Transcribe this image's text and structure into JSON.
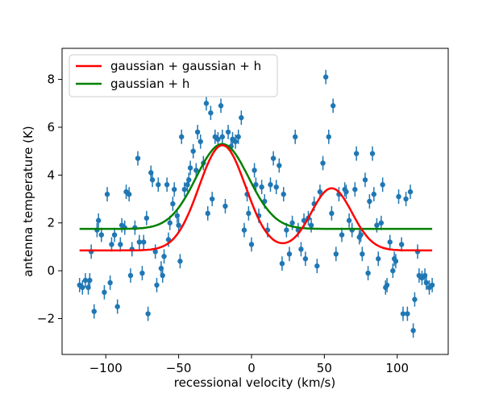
{
  "chart_data": {
    "type": "scatter",
    "xlabel": "recessional velocity (km/s)",
    "ylabel": "antenna temperature (K)",
    "xlim": [
      -130,
      135
    ],
    "ylim": [
      -3.5,
      9.3
    ],
    "xticks": [
      -100,
      -50,
      0,
      50,
      100
    ],
    "yticks": [
      -2,
      0,
      2,
      4,
      6,
      8
    ],
    "legend_position": "top-left",
    "colors": {
      "points": "#1f77b4",
      "fit_two": "#ff0000",
      "fit_one": "#008000"
    },
    "series": [
      {
        "name": "gaussian + gaussian + h",
        "type": "line",
        "model": {
          "a1": 4.4,
          "mu1": -20,
          "sigma1": 16,
          "a2": 2.6,
          "mu2": 55,
          "sigma2": 14,
          "h": 0.85
        }
      },
      {
        "name": "gaussian + h",
        "type": "line",
        "model": {
          "a1": 3.55,
          "mu1": -20,
          "sigma1": 18,
          "h": 1.75
        }
      }
    ],
    "points": [
      [
        -118,
        -0.6
      ],
      [
        -116,
        -0.7
      ],
      [
        -114,
        -0.4
      ],
      [
        -112,
        -0.7
      ],
      [
        -111,
        -0.4
      ],
      [
        -110,
        0.8
      ],
      [
        -108,
        -1.7
      ],
      [
        -106,
        1.7
      ],
      [
        -105,
        2.1
      ],
      [
        -103,
        1.5
      ],
      [
        -101,
        -0.9
      ],
      [
        -99,
        3.2
      ],
      [
        -97,
        -0.5
      ],
      [
        -96,
        1.1
      ],
      [
        -94,
        1.5
      ],
      [
        -92,
        -1.5
      ],
      [
        -90,
        1.1
      ],
      [
        -89,
        1.9
      ],
      [
        -87,
        1.8
      ],
      [
        -86,
        3.3
      ],
      [
        -84,
        3.2
      ],
      [
        -83,
        -0.2
      ],
      [
        -82,
        0.9
      ],
      [
        -80,
        1.8
      ],
      [
        -78,
        4.7
      ],
      [
        -77,
        1.2
      ],
      [
        -75,
        -0.1
      ],
      [
        -74,
        1.2
      ],
      [
        -72,
        2.2
      ],
      [
        -71,
        -1.8
      ],
      [
        -69,
        4.1
      ],
      [
        -68,
        3.8
      ],
      [
        -66,
        0.8
      ],
      [
        -65,
        -0.6
      ],
      [
        -64,
        3.6
      ],
      [
        -62,
        0.1
      ],
      [
        -61,
        -0.2
      ],
      [
        -60,
        0.6
      ],
      [
        -58,
        3.6
      ],
      [
        -57,
        1.3
      ],
      [
        -56,
        2.0
      ],
      [
        -54,
        2.8
      ],
      [
        -53,
        3.4
      ],
      [
        -51,
        2.3
      ],
      [
        -50,
        1.9
      ],
      [
        -49,
        0.4
      ],
      [
        -48,
        5.6
      ],
      [
        -46,
        3.4
      ],
      [
        -44,
        3.6
      ],
      [
        -43,
        3.8
      ],
      [
        -42,
        4.3
      ],
      [
        -40,
        5.0
      ],
      [
        -38,
        4.2
      ],
      [
        -37,
        5.8
      ],
      [
        -35,
        5.4
      ],
      [
        -33,
        4.5
      ],
      [
        -31,
        7.0
      ],
      [
        -30,
        2.4
      ],
      [
        -28,
        6.6
      ],
      [
        -27,
        3.0
      ],
      [
        -25,
        5.6
      ],
      [
        -23,
        5.5
      ],
      [
        -21,
        6.9
      ],
      [
        -20,
        5.6
      ],
      [
        -18,
        2.7
      ],
      [
        -16,
        5.8
      ],
      [
        -14,
        5.2
      ],
      [
        -13,
        5.5
      ],
      [
        -11,
        5.4
      ],
      [
        -9,
        5.6
      ],
      [
        -7,
        6.4
      ],
      [
        -5,
        1.7
      ],
      [
        -3,
        3.2
      ],
      [
        -2,
        2.4
      ],
      [
        0,
        1.1
      ],
      [
        2,
        4.2
      ],
      [
        3,
        3.6
      ],
      [
        5,
        2.3
      ],
      [
        7,
        3.5
      ],
      [
        9,
        2.9
      ],
      [
        11,
        1.7
      ],
      [
        13,
        3.6
      ],
      [
        15,
        4.7
      ],
      [
        17,
        3.5
      ],
      [
        19,
        4.4
      ],
      [
        21,
        0.3
      ],
      [
        22,
        3.2
      ],
      [
        24,
        1.7
      ],
      [
        26,
        0.7
      ],
      [
        28,
        2.0
      ],
      [
        30,
        5.6
      ],
      [
        32,
        1.7
      ],
      [
        34,
        0.9
      ],
      [
        36,
        2.1
      ],
      [
        37,
        0.5
      ],
      [
        39,
        2.2
      ],
      [
        41,
        1.9
      ],
      [
        43,
        2.8
      ],
      [
        45,
        0.2
      ],
      [
        47,
        3.3
      ],
      [
        49,
        4.5
      ],
      [
        51,
        8.1
      ],
      [
        53,
        5.6
      ],
      [
        55,
        2.4
      ],
      [
        56,
        6.9
      ],
      [
        58,
        0.7
      ],
      [
        60,
        3.2
      ],
      [
        62,
        1.5
      ],
      [
        64,
        3.4
      ],
      [
        65,
        3.3
      ],
      [
        67,
        2.1
      ],
      [
        69,
        1.7
      ],
      [
        71,
        3.4
      ],
      [
        72,
        4.9
      ],
      [
        74,
        1.4
      ],
      [
        75,
        1.5
      ],
      [
        76,
        0.7
      ],
      [
        78,
        3.8
      ],
      [
        80,
        -0.1
      ],
      [
        81,
        2.9
      ],
      [
        83,
        4.9
      ],
      [
        84,
        3.2
      ],
      [
        86,
        1.9
      ],
      [
        87,
        0.5
      ],
      [
        89,
        2.0
      ],
      [
        90,
        3.6
      ],
      [
        92,
        -0.7
      ],
      [
        93,
        -0.6
      ],
      [
        95,
        1.2
      ],
      [
        97,
        0.0
      ],
      [
        98,
        0.5
      ],
      [
        99,
        0.4
      ],
      [
        101,
        3.1
      ],
      [
        103,
        1.1
      ],
      [
        104,
        -1.8
      ],
      [
        106,
        3.0
      ],
      [
        107,
        -1.8
      ],
      [
        109,
        3.3
      ],
      [
        111,
        -2.5
      ],
      [
        112,
        -1.2
      ],
      [
        114,
        0.8
      ],
      [
        115,
        -0.2
      ],
      [
        117,
        -0.3
      ],
      [
        119,
        -0.2
      ],
      [
        120,
        -0.5
      ],
      [
        122,
        -0.7
      ],
      [
        124,
        -0.6
      ]
    ]
  }
}
